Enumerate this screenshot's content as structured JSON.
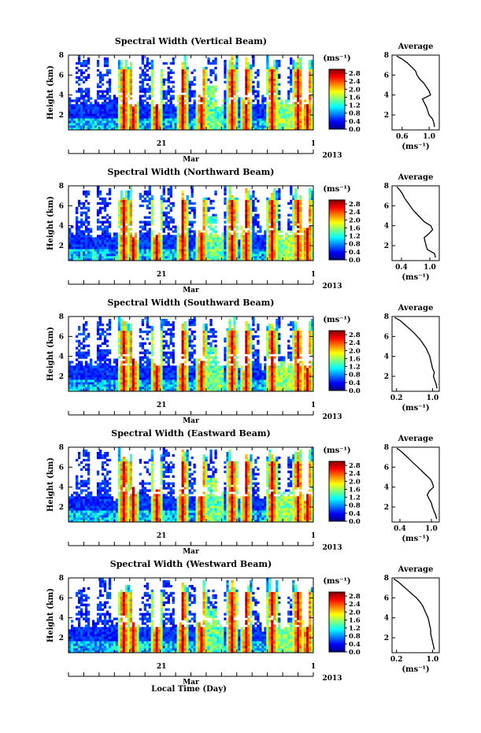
{
  "figure": {
    "xlabel": "Local Time (Day)",
    "year_label": "2013",
    "month_label": "Mar",
    "day_labels": [
      "21",
      "1"
    ]
  },
  "chart_data": [
    {
      "type": "heatmap",
      "title": "Spectral Width (Vertical Beam)",
      "ylabel": "Height (km)",
      "ylim": [
        0.5,
        8
      ],
      "yticks": [
        "2",
        "4",
        "6",
        "8"
      ],
      "colorbar_unit": "(ms⁻¹)",
      "colorbar_range": [
        0,
        3.0
      ],
      "colorbar_ticks": [
        "0.0",
        "0.4",
        "0.8",
        "1.2",
        "1.6",
        "2.0",
        "2.4",
        "2.8"
      ],
      "profile": {
        "title": "Average",
        "xlabel": "(ms⁻¹)",
        "xticks": [
          "0.6",
          "1.0"
        ],
        "xlim": [
          0.45,
          1.15
        ],
        "yticks": [
          "2",
          "4",
          "6",
          "8"
        ],
        "heights": [
          0.8,
          1.2,
          1.6,
          2.0,
          2.4,
          2.8,
          3.2,
          3.6,
          4.0,
          4.4,
          4.8,
          5.2,
          5.6,
          6.0,
          6.4,
          6.8,
          7.2,
          7.6,
          7.9
        ],
        "values": [
          1.08,
          1.07,
          1.05,
          1.0,
          0.98,
          0.96,
          0.93,
          0.9,
          1.02,
          1.0,
          0.96,
          0.92,
          0.86,
          0.82,
          0.8,
          0.74,
          0.68,
          0.6,
          0.52
        ]
      }
    },
    {
      "type": "heatmap",
      "title": "Spectral Width (Northward Beam)",
      "ylabel": "Height (km)",
      "ylim": [
        0.5,
        8
      ],
      "yticks": [
        "2",
        "4",
        "6",
        "8"
      ],
      "colorbar_unit": "(ms⁻¹)",
      "colorbar_range": [
        0,
        3.0
      ],
      "colorbar_ticks": [
        "0.0",
        "0.4",
        "0.8",
        "1.2",
        "1.6",
        "2.0",
        "2.4",
        "2.8"
      ],
      "profile": {
        "title": "Average",
        "xlabel": "(ms⁻¹)",
        "xticks": [
          "0.4",
          "1.0"
        ],
        "xlim": [
          0.2,
          1.2
        ],
        "yticks": [
          "2",
          "4",
          "6",
          "8"
        ],
        "heights": [
          0.8,
          1.2,
          1.6,
          2.0,
          2.4,
          2.8,
          3.2,
          3.6,
          4.0,
          4.4,
          4.8,
          5.2,
          5.6,
          6.0,
          6.4,
          6.8,
          7.2,
          7.6,
          7.9
        ],
        "values": [
          1.12,
          1.1,
          0.95,
          0.92,
          0.9,
          0.88,
          0.98,
          1.06,
          1.02,
          0.88,
          0.8,
          0.72,
          0.64,
          0.58,
          0.52,
          0.46,
          0.42,
          0.36,
          0.3
        ]
      }
    },
    {
      "type": "heatmap",
      "title": "Spectral Width (Southward Beam)",
      "ylabel": "Height (km)",
      "ylim": [
        0.5,
        8
      ],
      "yticks": [
        "2",
        "4",
        "6",
        "8"
      ],
      "colorbar_unit": "(ms⁻¹)",
      "colorbar_range": [
        0,
        3.0
      ],
      "colorbar_ticks": [
        "0.0",
        "0.4",
        "0.8",
        "1.2",
        "1.6",
        "2.0",
        "2.4",
        "2.8"
      ],
      "profile": {
        "title": "Average",
        "xlabel": "(ms⁻¹)",
        "xticks": [
          "0.2",
          "1.0"
        ],
        "xlim": [
          0.1,
          1.15
        ],
        "yticks": [
          "2",
          "4",
          "6",
          "8"
        ],
        "heights": [
          0.8,
          1.2,
          1.6,
          2.0,
          2.4,
          2.8,
          3.2,
          3.6,
          4.0,
          4.4,
          4.8,
          5.2,
          5.6,
          6.0,
          6.4,
          6.8,
          7.2,
          7.6,
          7.9
        ],
        "values": [
          1.1,
          1.08,
          1.05,
          1.02,
          1.04,
          1.0,
          0.98,
          0.96,
          0.94,
          0.9,
          0.86,
          0.8,
          0.74,
          0.66,
          0.58,
          0.48,
          0.38,
          0.28,
          0.16
        ]
      }
    },
    {
      "type": "heatmap",
      "title": "Spectral Width (Eastward Beam)",
      "ylabel": "Height (km)",
      "ylim": [
        0.5,
        8
      ],
      "yticks": [
        "2",
        "4",
        "6",
        "8"
      ],
      "colorbar_unit": "(ms⁻¹)",
      "colorbar_range": [
        0,
        3.0
      ],
      "colorbar_ticks": [
        "0.0",
        "0.4",
        "0.8",
        "1.2",
        "1.6",
        "2.0",
        "2.4",
        "2.8"
      ],
      "profile": {
        "title": "Average",
        "xlabel": "(ms⁻¹)",
        "xticks": [
          "0.4",
          "1.0"
        ],
        "xlim": [
          0.25,
          1.15
        ],
        "yticks": [
          "2",
          "4",
          "6",
          "8"
        ],
        "heights": [
          0.8,
          1.2,
          1.6,
          2.0,
          2.4,
          2.8,
          3.2,
          3.6,
          4.0,
          4.4,
          4.8,
          5.2,
          5.6,
          6.0,
          6.4,
          6.8,
          7.2,
          7.6,
          7.9
        ],
        "values": [
          1.1,
          1.08,
          1.05,
          1.02,
          1.0,
          0.96,
          0.92,
          0.96,
          1.04,
          1.02,
          0.98,
          0.9,
          0.82,
          0.74,
          0.66,
          0.58,
          0.5,
          0.42,
          0.34
        ]
      }
    },
    {
      "type": "heatmap",
      "title": "Spectral Width (Westward Beam)",
      "ylabel": "Height (km)",
      "ylim": [
        0.5,
        8
      ],
      "yticks": [
        "2",
        "4",
        "6",
        "8"
      ],
      "colorbar_unit": "(ms⁻¹)",
      "colorbar_range": [
        0,
        3.0
      ],
      "colorbar_ticks": [
        "0.0",
        "0.4",
        "0.8",
        "1.2",
        "1.6",
        "2.0",
        "2.4",
        "2.8"
      ],
      "profile": {
        "title": "Average",
        "xlabel": "(ms⁻¹)",
        "xticks": [
          "0.2",
          "1.0"
        ],
        "xlim": [
          0.1,
          1.15
        ],
        "yticks": [
          "2",
          "4",
          "6",
          "8"
        ],
        "heights": [
          0.8,
          1.2,
          1.6,
          2.0,
          2.4,
          2.8,
          3.2,
          3.6,
          4.0,
          4.4,
          4.8,
          5.2,
          5.6,
          6.0,
          6.4,
          6.8,
          7.2,
          7.6,
          7.9
        ],
        "values": [
          1.04,
          1.02,
          1.0,
          0.98,
          0.96,
          0.96,
          0.94,
          0.92,
          0.9,
          0.86,
          0.82,
          0.78,
          0.72,
          0.64,
          0.54,
          0.44,
          0.34,
          0.24,
          0.14
        ]
      }
    }
  ]
}
